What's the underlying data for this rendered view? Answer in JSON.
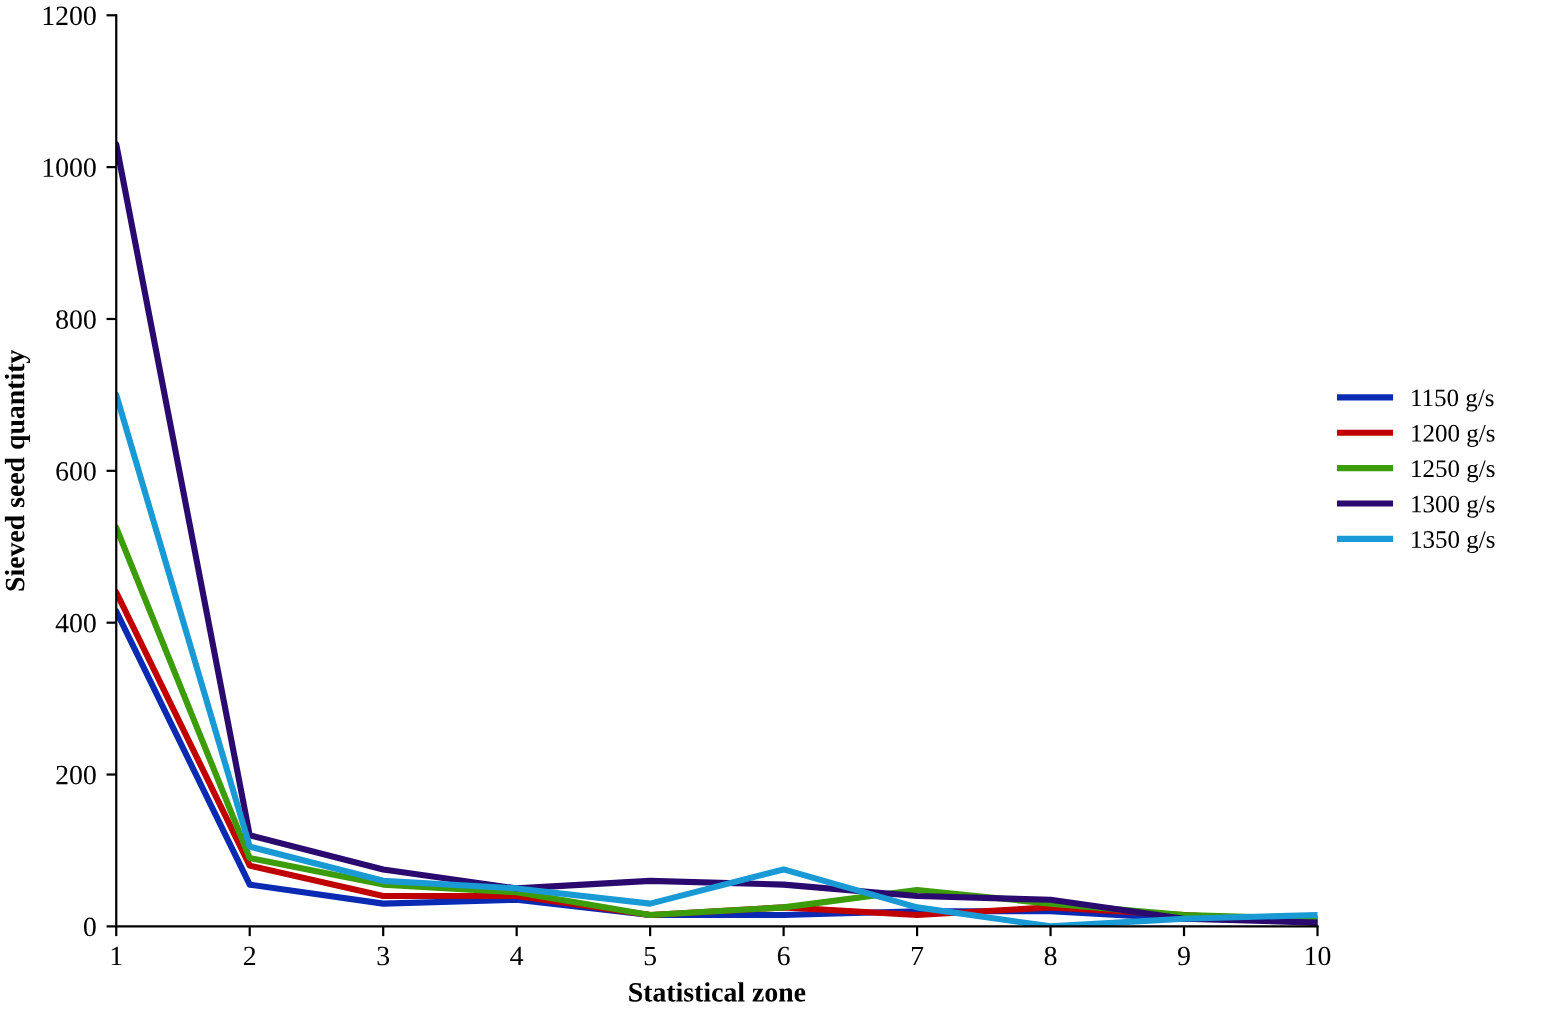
{
  "chart_data": {
    "type": "line",
    "xlabel": "Statistical zone",
    "ylabel": "Sieved seed quantity",
    "x": [
      1,
      2,
      3,
      4,
      5,
      6,
      7,
      8,
      9,
      10
    ],
    "xlim": [
      1,
      10
    ],
    "xticks": [
      1,
      2,
      3,
      4,
      5,
      6,
      7,
      8,
      9,
      10
    ],
    "ylim": [
      0,
      1200
    ],
    "yticks": [
      0,
      200,
      400,
      600,
      800,
      1000,
      1200
    ],
    "grid": false,
    "legend": "right",
    "marker": "none",
    "line_style": "solid",
    "series": [
      {
        "name": "1150 g/s",
        "color": "#0a2ab4",
        "values": [
          415,
          55,
          30,
          35,
          15,
          15,
          20,
          20,
          10,
          10
        ]
      },
      {
        "name": "1200 g/s",
        "color": "#c00000",
        "values": [
          440,
          80,
          40,
          40,
          15,
          25,
          15,
          25,
          15,
          5
        ]
      },
      {
        "name": "1250 g/s",
        "color": "#3c9c0a",
        "values": [
          525,
          90,
          55,
          45,
          15,
          25,
          48,
          30,
          15,
          10
        ]
      },
      {
        "name": "1300 g/s",
        "color": "#2a0a6e",
        "values": [
          1030,
          120,
          75,
          50,
          60,
          55,
          40,
          35,
          10,
          5
        ]
      },
      {
        "name": "1350 g/s",
        "color": "#1a9ad4",
        "values": [
          700,
          105,
          60,
          50,
          30,
          75,
          25,
          0,
          10,
          15
        ]
      }
    ]
  }
}
